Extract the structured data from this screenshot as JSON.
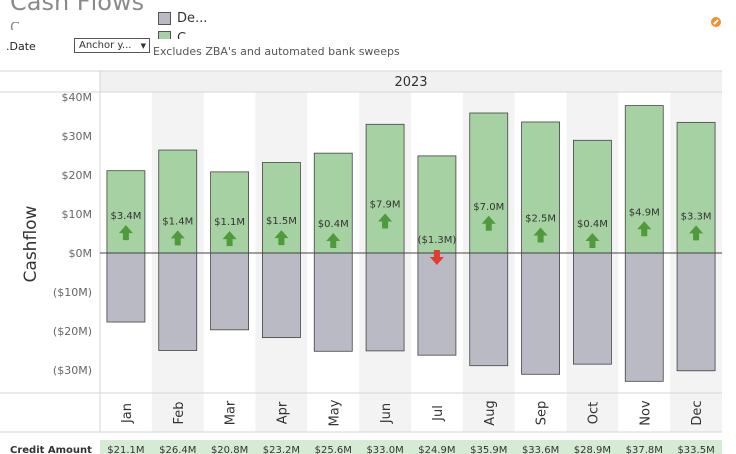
{
  "header": {
    "title": "Cash Flows",
    "subtitle": "C",
    "legend": [
      {
        "label": "De...",
        "color": "#b9bac4"
      },
      {
        "label": "C",
        "color": "#a6d1a2"
      }
    ],
    "date_label": ".Date",
    "anchor_select": "Anchor y...",
    "note": "Excludes ZBA's and automated bank sweeps"
  },
  "chart_data": {
    "type": "bar",
    "year": "2023",
    "ylabel": "Cashflow",
    "categories": [
      "Jan",
      "Feb",
      "Mar",
      "Apr",
      "May",
      "Jun",
      "Jul",
      "Aug",
      "Sep",
      "Oct",
      "Nov",
      "Dec"
    ],
    "ylim": [
      -36,
      40
    ],
    "y_ticks": [
      40,
      30,
      20,
      10,
      0,
      -10,
      -20,
      -30
    ],
    "y_tick_labels": [
      "$40M",
      "$30M",
      "$20M",
      "$10M",
      "$0M",
      "($10M)",
      "($20M)",
      "($30M)"
    ],
    "series": [
      {
        "name": "Credit Amount",
        "values": [
          21.1,
          26.4,
          20.8,
          23.2,
          25.6,
          33.0,
          24.9,
          35.9,
          33.6,
          28.9,
          37.8,
          33.5
        ],
        "color": "#a6d1a2"
      },
      {
        "values": [
          -17.7,
          -25.0,
          -19.7,
          -21.7,
          -25.2,
          -25.1,
          -26.2,
          -28.9,
          -31.1,
          -28.5,
          -32.9,
          -30.2
        ],
        "color": "#b9bac4"
      }
    ],
    "net_labels": [
      "$3.4M",
      "$1.4M",
      "$1.1M",
      "$1.5M",
      "$0.4M",
      "$7.9M",
      "($1.3M)",
      "$7.0M",
      "$2.5M",
      "$0.4M",
      "$4.9M",
      "$3.3M"
    ],
    "net_direction": [
      "up",
      "up",
      "up",
      "up",
      "up",
      "up",
      "down",
      "up",
      "up",
      "up",
      "up",
      "up"
    ],
    "up_color": "#4f9a3a",
    "down_color": "#e03c31",
    "credit_row_label": "Credit Amount",
    "credit_row": [
      "$21.1M",
      "$26.4M",
      "$20.8M",
      "$23.2M",
      "$25.6M",
      "$33.0M",
      "$24.9M",
      "$35.9M",
      "$33.6M",
      "$28.9M",
      "$37.8M",
      "$33.5M"
    ]
  }
}
